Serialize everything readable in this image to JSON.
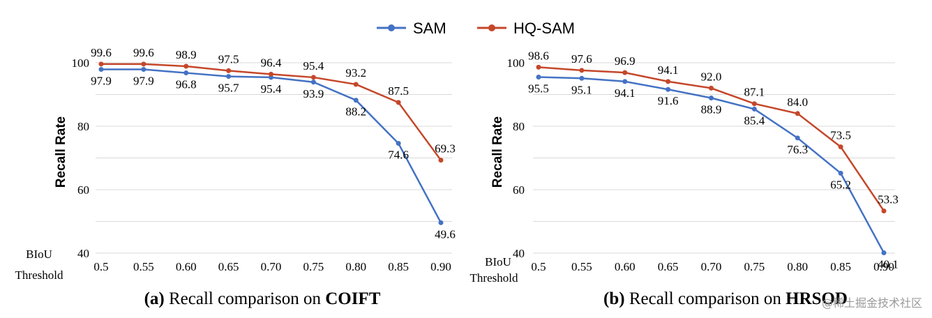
{
  "legend": {
    "series_a": "SAM",
    "series_b": "HQ-SAM"
  },
  "colors": {
    "sam": "#4472C4",
    "hqsam": "#C5472A",
    "grid": "#d9d9d9"
  },
  "watermark": "@稀土掘金技术社区",
  "chart_data": [
    {
      "type": "line",
      "caption_prefix": "(a)",
      "caption_text": " Recall comparison on ",
      "caption_bold": "COIFT",
      "ylabel": "Recall Rate",
      "xlabel_line1": "BIoU",
      "xlabel_line2": "Threshold",
      "x": [
        "0.5",
        "0.55",
        "0.60",
        "0.65",
        "0.70",
        "0.75",
        "0.80",
        "0.85",
        "0.90"
      ],
      "ylim": [
        40,
        100
      ],
      "yticks": [
        "100",
        "80",
        "60",
        "40"
      ],
      "grid": true,
      "series": [
        {
          "name": "SAM",
          "values": [
            97.9,
            97.9,
            96.8,
            95.7,
            95.4,
            93.9,
            88.2,
            74.6,
            49.6
          ],
          "labels": [
            "97.9",
            "97.9",
            "96.8",
            "95.7",
            "95.4",
            "93.9",
            "88.2",
            "74.6",
            "49.6"
          ]
        },
        {
          "name": "HQ-SAM",
          "values": [
            99.6,
            99.6,
            98.9,
            97.5,
            96.4,
            95.4,
            93.2,
            87.5,
            69.3
          ],
          "labels": [
            "99.6",
            "99.6",
            "98.9",
            "97.5",
            "96.4",
            "95.4",
            "93.2",
            "87.5",
            "69.3"
          ]
        }
      ]
    },
    {
      "type": "line",
      "caption_prefix": "(b)",
      "caption_text": " Recall comparison on ",
      "caption_bold": "HRSOD",
      "ylabel": "Recall Rate",
      "xlabel_line1": "BIoU",
      "xlabel_line2": "Threshold",
      "x": [
        "0.5",
        "0.55",
        "0.60",
        "0.65",
        "0.70",
        "0.75",
        "0.80",
        "0.85",
        "0.90"
      ],
      "ylim": [
        40,
        100
      ],
      "yticks": [
        "100",
        "80",
        "60",
        "40"
      ],
      "grid": true,
      "series": [
        {
          "name": "SAM",
          "values": [
            95.5,
            95.1,
            94.1,
            91.6,
            88.9,
            85.4,
            76.3,
            65.2,
            40.1
          ],
          "labels": [
            "95.5",
            "95.1",
            "94.1",
            "91.6",
            "88.9",
            "85.4",
            "76.3",
            "65.2",
            "40.1"
          ]
        },
        {
          "name": "HQ-SAM",
          "values": [
            98.6,
            97.6,
            96.9,
            94.1,
            92.0,
            87.1,
            84.0,
            73.5,
            53.3
          ],
          "labels": [
            "98.6",
            "97.6",
            "96.9",
            "94.1",
            "92.0",
            "87.1",
            "84.0",
            "73.5",
            "53.3"
          ]
        }
      ]
    }
  ]
}
